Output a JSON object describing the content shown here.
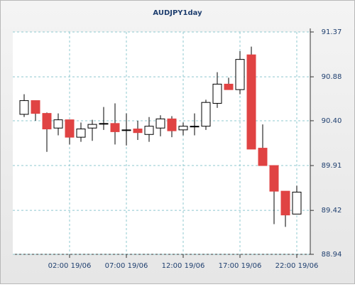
{
  "chart_data": {
    "type": "candlestick",
    "title": "AUDJPY1day",
    "categories": [
      null,
      null,
      null,
      null,
      "02:00 19/06",
      null,
      null,
      null,
      null,
      "07:00 19/06",
      null,
      null,
      null,
      null,
      "12:00 19/06",
      null,
      null,
      null,
      null,
      "17:00 19/06",
      null,
      null,
      null,
      null,
      "22:00 19/06"
    ],
    "open": [
      90.47,
      90.62,
      90.48,
      90.32,
      90.41,
      90.22,
      90.32,
      90.37,
      90.37,
      90.3,
      90.31,
      90.25,
      90.32,
      90.42,
      90.3,
      90.34,
      90.34,
      90.59,
      90.8,
      90.74,
      91.12,
      90.1,
      89.91,
      89.63,
      89.38
    ],
    "high": [
      90.69,
      90.62,
      90.49,
      90.48,
      90.41,
      90.38,
      90.41,
      90.55,
      90.59,
      90.48,
      90.4,
      90.44,
      90.46,
      90.45,
      90.38,
      90.48,
      90.63,
      90.93,
      90.87,
      91.16,
      91.21,
      90.36,
      89.91,
      89.63,
      89.69
    ],
    "low": [
      90.44,
      90.4,
      90.06,
      90.24,
      90.14,
      90.17,
      90.18,
      90.3,
      90.14,
      90.13,
      90.19,
      90.17,
      90.23,
      90.22,
      90.24,
      90.24,
      90.3,
      90.54,
      90.74,
      90.69,
      90.09,
      89.91,
      89.27,
      89.24,
      89.38
    ],
    "close": [
      90.62,
      90.48,
      90.31,
      90.41,
      90.22,
      90.31,
      90.36,
      90.37,
      90.28,
      90.3,
      90.27,
      90.34,
      90.42,
      90.29,
      90.34,
      90.34,
      90.6,
      90.8,
      90.74,
      91.07,
      90.09,
      89.91,
      89.63,
      89.37,
      89.62
    ],
    "up_color": "#ffffff",
    "down_color": "#e04343",
    "edge_color": "#000000",
    "ylim": [
      88.94,
      91.37
    ],
    "yticks": [
      88.94,
      89.42,
      89.91,
      {
        "value": 90.4,
        "label": "90.40"
      },
      90.88,
      91.37
    ],
    "grid": true
  }
}
